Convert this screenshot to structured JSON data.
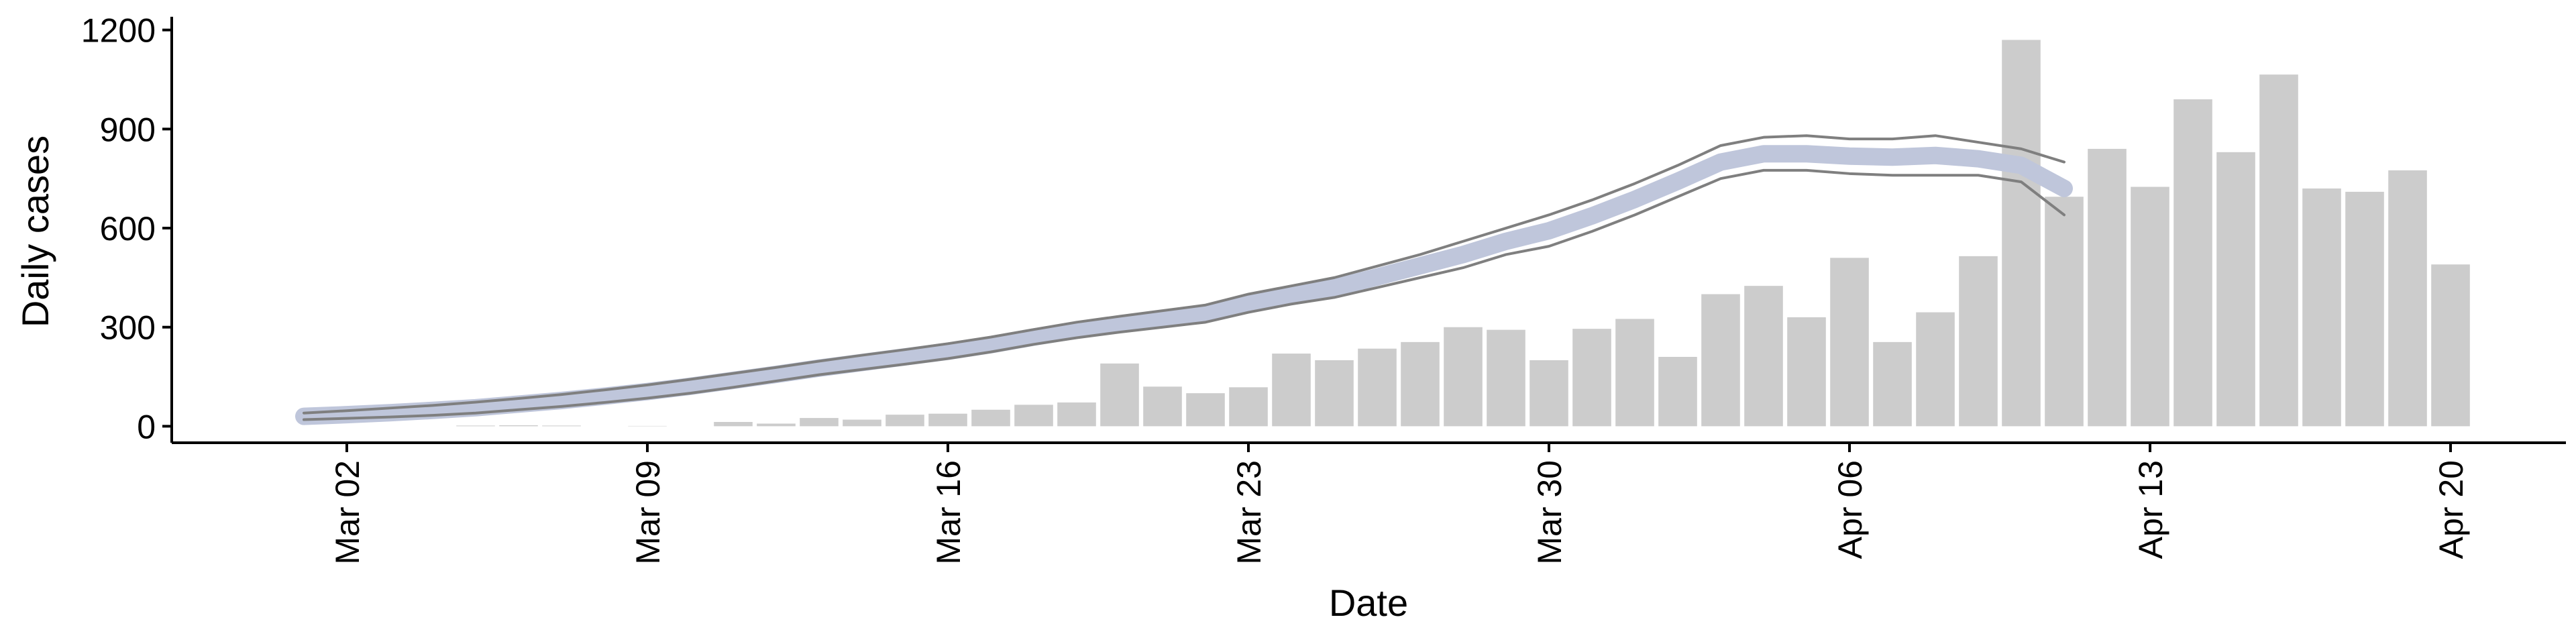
{
  "chart_data": {
    "type": "bar",
    "x_label": "Date",
    "y_label": "Daily cases",
    "categories": [
      "Mar 01",
      "Mar 02",
      "Mar 03",
      "Mar 04",
      "Mar 05",
      "Mar 06",
      "Mar 07",
      "Mar 08",
      "Mar 09",
      "Mar 10",
      "Mar 11",
      "Mar 12",
      "Mar 13",
      "Mar 14",
      "Mar 15",
      "Mar 16",
      "Mar 17",
      "Mar 18",
      "Mar 19",
      "Mar 20",
      "Mar 21",
      "Mar 22",
      "Mar 23",
      "Mar 24",
      "Mar 25",
      "Mar 26",
      "Mar 27",
      "Mar 28",
      "Mar 29",
      "Mar 30",
      "Mar 31",
      "Apr 01",
      "Apr 02",
      "Apr 03",
      "Apr 04",
      "Apr 05",
      "Apr 06",
      "Apr 07",
      "Apr 08",
      "Apr 09",
      "Apr 10",
      "Apr 11",
      "Apr 12",
      "Apr 13",
      "Apr 14",
      "Apr 15",
      "Apr 16",
      "Apr 17",
      "Apr 18",
      "Apr 19",
      "Apr 20"
    ],
    "series": [
      {
        "type": "bar",
        "color": "#cccccc",
        "values": [
          null,
          null,
          null,
          null,
          2,
          3,
          2,
          0,
          1,
          0,
          13,
          8,
          25,
          20,
          35,
          38,
          50,
          65,
          72,
          190,
          120,
          100,
          118,
          220,
          200,
          235,
          255,
          300,
          292,
          200,
          295,
          325,
          210,
          400,
          425,
          330,
          510,
          255,
          345,
          515,
          1170,
          695,
          840,
          725,
          990,
          830,
          1065,
          720,
          710,
          775,
          490
        ]
      },
      {
        "type": "line",
        "color": "#bfc6db",
        "width": 26,
        "values": [
          30,
          35,
          41,
          48,
          56,
          67,
          78,
          91,
          105,
          121,
          139,
          157,
          176,
          193,
          210,
          227,
          247,
          270,
          291,
          309,
          325,
          341,
          372,
          397,
          420,
          452,
          486,
          520,
          560,
          592,
          637,
          687,
          742,
          800,
          825,
          825,
          818,
          815,
          820,
          810,
          790,
          720,
          null,
          null,
          null,
          null,
          null,
          null,
          null,
          null,
          null
        ]
      },
      {
        "type": "line",
        "color": "#7f7f7f",
        "width": 4,
        "values": [
          40,
          47,
          55,
          63,
          73,
          84,
          96,
          110,
          125,
          142,
          160,
          178,
          197,
          215,
          232,
          250,
          270,
          293,
          315,
          333,
          350,
          367,
          400,
          425,
          450,
          485,
          520,
          560,
          600,
          640,
          685,
          735,
          790,
          850,
          875,
          880,
          870,
          870,
          880,
          860,
          840,
          800,
          null,
          null,
          null,
          null,
          null,
          null,
          null,
          null,
          null
        ]
      },
      {
        "type": "line",
        "color": "#7f7f7f",
        "width": 4,
        "values": [
          20,
          24,
          28,
          33,
          40,
          50,
          60,
          72,
          85,
          100,
          118,
          137,
          156,
          172,
          188,
          205,
          225,
          248,
          268,
          285,
          300,
          315,
          345,
          370,
          390,
          420,
          450,
          480,
          520,
          545,
          590,
          640,
          695,
          750,
          775,
          775,
          765,
          760,
          760,
          760,
          740,
          640,
          null,
          null,
          null,
          null,
          null,
          null,
          null,
          null,
          null
        ]
      }
    ],
    "xticks": [
      "Mar 02",
      "Mar 09",
      "Mar 16",
      "Mar 23",
      "Mar 30",
      "Apr 06",
      "Apr 13",
      "Apr 20"
    ],
    "ylim": [
      -50,
      1240
    ],
    "yticks": [
      0,
      300,
      600,
      900,
      1200
    ]
  }
}
